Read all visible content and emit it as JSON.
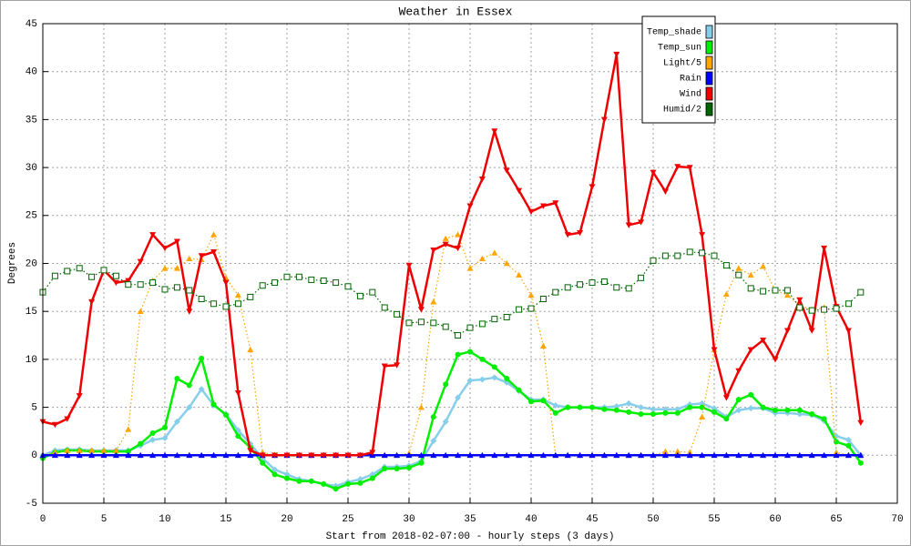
{
  "chart_data": {
    "type": "line",
    "title": "Weather in Essex",
    "x_label": "Start from 2018-02-07:00 - hourly steps (3 days)",
    "y_label": "Degrees",
    "x": [
      0,
      1,
      2,
      3,
      4,
      5,
      6,
      7,
      8,
      9,
      10,
      11,
      12,
      13,
      14,
      15,
      16,
      17,
      18,
      19,
      20,
      21,
      22,
      23,
      24,
      25,
      26,
      27,
      28,
      29,
      30,
      31,
      32,
      33,
      34,
      35,
      36,
      37,
      38,
      39,
      40,
      41,
      42,
      43,
      44,
      45,
      46,
      47,
      48,
      49,
      50,
      51,
      52,
      53,
      54,
      55,
      56,
      57,
      58,
      59,
      60,
      61,
      62,
      63,
      64,
      65,
      66,
      67
    ],
    "xlim": [
      0,
      70
    ],
    "xticks": [
      0,
      5,
      10,
      15,
      20,
      25,
      30,
      35,
      40,
      45,
      50,
      55,
      60,
      65,
      70
    ],
    "ylim": [
      -5,
      45
    ],
    "yticks": [
      -5,
      0,
      5,
      10,
      15,
      20,
      25,
      30,
      35,
      40,
      45
    ],
    "grid": true,
    "legend": "top-right",
    "series": [
      {
        "name": "Temp_shade",
        "color": "#87ceeb",
        "marker": "diamond",
        "line_style": "solid",
        "values": [
          0,
          0.5,
          0.6,
          0.6,
          0.5,
          0.5,
          0.5,
          0.5,
          1,
          1.6,
          1.8,
          3.5,
          5,
          6.9,
          5.2,
          4.3,
          2.6,
          1.2,
          -0.3,
          -1.5,
          -2,
          -2.5,
          -2.7,
          -3,
          -3.2,
          -2.8,
          -2.5,
          -2,
          -1.2,
          -1.2,
          -1.1,
          -0.6,
          1.5,
          3.5,
          6,
          7.8,
          7.9,
          8.1,
          7.6,
          6.7,
          5.8,
          5.8,
          5.2,
          5,
          5,
          5,
          5,
          5.1,
          5.4,
          5,
          4.8,
          4.8,
          4.8,
          5.3,
          5.4,
          4.9,
          4,
          4.7,
          4.9,
          4.9,
          4.4,
          4.4,
          4.3,
          4.2,
          3.6,
          2,
          1.6,
          0
        ]
      },
      {
        "name": "Temp_sun",
        "color": "#00ee00",
        "marker": "circle",
        "line_style": "solid",
        "values": [
          -0.3,
          0.3,
          0.5,
          0.5,
          0.4,
          0.4,
          0.4,
          0.4,
          1.2,
          2.3,
          2.9,
          8,
          7.3,
          10.1,
          5.3,
          4.2,
          2,
          0.8,
          -0.8,
          -2,
          -2.4,
          -2.7,
          -2.7,
          -3,
          -3.5,
          -3,
          -2.9,
          -2.4,
          -1.4,
          -1.4,
          -1.3,
          -0.8,
          4,
          7.4,
          10.5,
          10.8,
          10,
          9.2,
          8,
          6.8,
          5.6,
          5.7,
          4.4,
          5,
          5,
          5,
          4.8,
          4.7,
          4.5,
          4.3,
          4.3,
          4.4,
          4.4,
          5,
          5,
          4.5,
          3.8,
          5.8,
          6.3,
          5,
          4.7,
          4.7,
          4.7,
          4.3,
          3.8,
          1.4,
          1,
          -0.8
        ]
      },
      {
        "name": "Light/5",
        "color": "#ffa500",
        "marker": "triangle-up",
        "line_style": "dotted",
        "values": [
          0,
          0.3,
          0.5,
          0.5,
          0.5,
          0.5,
          0.5,
          2.7,
          15,
          18.2,
          19.5,
          19.5,
          20.5,
          20.4,
          23,
          18.5,
          16.7,
          11,
          0.3,
          0,
          0,
          0,
          0,
          0,
          0,
          0,
          0,
          0,
          0,
          0,
          0.2,
          5,
          16,
          22.6,
          23,
          19.5,
          20.5,
          21.1,
          20,
          18.8,
          16.7,
          11.4,
          0,
          0,
          0,
          0,
          0,
          0,
          0,
          0,
          0,
          0.4,
          0.4,
          0.3,
          4,
          11,
          16.8,
          19.5,
          18.8,
          19.7,
          17.2,
          16.7,
          15.6,
          15.2,
          15.4,
          0.3,
          0,
          0
        ]
      },
      {
        "name": "Rain",
        "color": "#0000ff",
        "marker": "triangle-up",
        "line_style": "solid",
        "values": [
          0,
          0,
          0,
          0,
          0,
          0,
          0,
          0,
          0,
          0,
          0,
          0,
          0,
          0,
          0,
          0,
          0,
          0,
          0,
          0,
          0,
          0,
          0,
          0,
          0,
          0,
          0,
          0,
          0,
          0,
          0,
          0,
          0,
          0,
          0,
          0,
          0,
          0,
          0,
          0,
          0,
          0,
          0,
          0,
          0,
          0,
          0,
          0,
          0,
          0,
          0,
          0,
          0,
          0,
          0,
          0,
          0,
          0,
          0,
          0,
          0,
          0,
          0,
          0,
          0,
          0,
          0,
          0
        ]
      },
      {
        "name": "Wind",
        "color": "#ee0000",
        "marker": "triangle-down",
        "line_style": "solid",
        "values": [
          3.5,
          3.2,
          3.8,
          6.2,
          16,
          19.3,
          18,
          18.2,
          20.2,
          23,
          21.6,
          22.3,
          15,
          20.8,
          21.2,
          18,
          6.5,
          0.5,
          0,
          0,
          0,
          0,
          0,
          0,
          0,
          0,
          0,
          0.3,
          9.3,
          9.4,
          19.8,
          15.2,
          21.4,
          22,
          21.6,
          26,
          28.8,
          33.8,
          29.7,
          27.6,
          25.4,
          26,
          26.3,
          23,
          23.2,
          28,
          35,
          41.8,
          24,
          24.3,
          29.5,
          27.5,
          30.1,
          30,
          23,
          11,
          6,
          8.8,
          11,
          12,
          10,
          13,
          16.2,
          13,
          21.6,
          15.5,
          13,
          3.4
        ]
      },
      {
        "name": "Humid/2",
        "color": "#006400",
        "marker": "square-open",
        "line_style": "dotted",
        "values": [
          17,
          18.7,
          19.2,
          19.5,
          18.6,
          19.3,
          18.7,
          17.8,
          17.8,
          18,
          17.3,
          17.5,
          17.2,
          16.3,
          15.8,
          15.5,
          15.8,
          16.5,
          17.7,
          18,
          18.6,
          18.6,
          18.3,
          18.2,
          18,
          17.6,
          16.6,
          17,
          15.4,
          14.7,
          13.8,
          13.9,
          13.8,
          13.4,
          12.5,
          13.3,
          13.7,
          14.2,
          14.4,
          15.2,
          15.3,
          16.3,
          17,
          17.5,
          17.8,
          18,
          18.1,
          17.5,
          17.4,
          18.5,
          20.3,
          20.8,
          20.8,
          21.2,
          21.1,
          20.8,
          19.8,
          18.8,
          17.4,
          17.1,
          17.2,
          17.2,
          15.4,
          15.1,
          15.2,
          15.3,
          15.8,
          17
        ]
      }
    ]
  }
}
